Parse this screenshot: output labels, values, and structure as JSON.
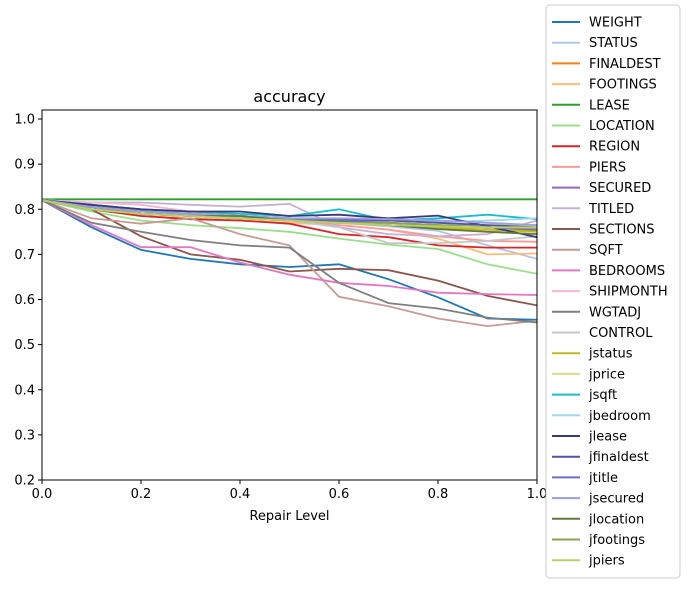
{
  "chart_data": {
    "type": "line",
    "title": "accuracy",
    "xlabel": "Repair Level",
    "ylabel": "",
    "xlim": [
      0.0,
      1.0
    ],
    "ylim": [
      0.2,
      1.02
    ],
    "xticks": [
      "0.0",
      "0.2",
      "0.4",
      "0.6",
      "0.8",
      "1.0"
    ],
    "yticks": [
      "0.2",
      "0.3",
      "0.4",
      "0.5",
      "0.6",
      "0.7",
      "0.8",
      "0.9",
      "1.0"
    ],
    "grid": false,
    "legend_position": "right",
    "x": [
      0.0,
      0.1,
      0.2,
      0.3,
      0.4,
      0.5,
      0.6,
      0.7,
      0.8,
      0.9,
      1.0
    ],
    "series": [
      {
        "name": "WEIGHT",
        "color": "#1f77b4",
        "values": [
          0.82,
          0.76,
          0.71,
          0.69,
          0.678,
          0.672,
          0.678,
          0.645,
          0.605,
          0.558,
          0.555
        ]
      },
      {
        "name": "STATUS",
        "color": "#aec7e8",
        "values": [
          0.82,
          0.8,
          0.79,
          0.785,
          0.78,
          0.775,
          0.77,
          0.762,
          0.752,
          0.72,
          0.69
        ]
      },
      {
        "name": "FINALDEST",
        "color": "#ff7f0e",
        "values": [
          0.82,
          0.805,
          0.79,
          0.785,
          0.78,
          0.775,
          0.77,
          0.765,
          0.758,
          0.755,
          0.752
        ]
      },
      {
        "name": "FOOTINGS",
        "color": "#ffbb78",
        "values": [
          0.82,
          0.8,
          0.785,
          0.78,
          0.775,
          0.77,
          0.765,
          0.755,
          0.735,
          0.7,
          0.702
        ]
      },
      {
        "name": "LEASE",
        "color": "#2ca02c",
        "values": [
          0.822,
          0.822,
          0.822,
          0.822,
          0.822,
          0.822,
          0.822,
          0.822,
          0.822,
          0.822,
          0.822
        ]
      },
      {
        "name": "LOCATION",
        "color": "#98df8a",
        "values": [
          0.82,
          0.795,
          0.775,
          0.765,
          0.758,
          0.75,
          0.735,
          0.722,
          0.712,
          0.678,
          0.657
        ]
      },
      {
        "name": "REGION",
        "color": "#d62728",
        "values": [
          0.82,
          0.8,
          0.785,
          0.778,
          0.775,
          0.768,
          0.745,
          0.738,
          0.72,
          0.715,
          0.715
        ]
      },
      {
        "name": "PIERS",
        "color": "#ff9896",
        "values": [
          0.82,
          0.81,
          0.795,
          0.79,
          0.785,
          0.775,
          0.765,
          0.755,
          0.74,
          0.73,
          0.728
        ]
      },
      {
        "name": "SECURED",
        "color": "#9467bd",
        "values": [
          0.82,
          0.805,
          0.795,
          0.79,
          0.785,
          0.78,
          0.775,
          0.77,
          0.765,
          0.76,
          0.755
        ]
      },
      {
        "name": "TITLED",
        "color": "#c5b0d5",
        "values": [
          0.82,
          0.815,
          0.815,
          0.81,
          0.806,
          0.812,
          0.76,
          0.745,
          0.74,
          0.745,
          0.775
        ]
      },
      {
        "name": "SECTIONS",
        "color": "#8c564b",
        "values": [
          0.82,
          0.8,
          0.74,
          0.7,
          0.688,
          0.662,
          0.668,
          0.665,
          0.642,
          0.608,
          0.587
        ]
      },
      {
        "name": "SQFT",
        "color": "#c49c94",
        "values": [
          0.82,
          0.78,
          0.768,
          0.78,
          0.745,
          0.72,
          0.606,
          0.585,
          0.558,
          0.541,
          0.553
        ]
      },
      {
        "name": "BEDROOMS",
        "color": "#e377c2",
        "values": [
          0.82,
          0.765,
          0.716,
          0.716,
          0.682,
          0.655,
          0.637,
          0.63,
          0.615,
          0.612,
          0.61
        ]
      },
      {
        "name": "SHIPMONTH",
        "color": "#f7b6d2",
        "values": [
          0.82,
          0.815,
          0.81,
          0.795,
          0.785,
          0.78,
          0.775,
          0.77,
          0.765,
          0.76,
          0.76
        ]
      },
      {
        "name": "WGTADJ",
        "color": "#7f7f7f",
        "values": [
          0.82,
          0.77,
          0.75,
          0.732,
          0.72,
          0.715,
          0.637,
          0.592,
          0.58,
          0.56,
          0.549
        ]
      },
      {
        "name": "CONTROL",
        "color": "#c7c7c7",
        "values": [
          0.82,
          0.81,
          0.8,
          0.79,
          0.785,
          0.775,
          0.76,
          0.725,
          0.725,
          0.73,
          0.74
        ]
      },
      {
        "name": "jstatus",
        "color": "#bcbd22",
        "values": [
          0.82,
          0.8,
          0.79,
          0.785,
          0.78,
          0.775,
          0.77,
          0.765,
          0.76,
          0.755,
          0.75
        ]
      },
      {
        "name": "jprice",
        "color": "#dbdb8d",
        "values": [
          0.82,
          0.805,
          0.795,
          0.79,
          0.785,
          0.78,
          0.775,
          0.77,
          0.765,
          0.765,
          0.765
        ]
      },
      {
        "name": "jsqft",
        "color": "#17becf",
        "values": [
          0.82,
          0.81,
          0.8,
          0.795,
          0.79,
          0.785,
          0.8,
          0.775,
          0.78,
          0.788,
          0.778
        ]
      },
      {
        "name": "jbedroom",
        "color": "#9edae5",
        "values": [
          0.82,
          0.805,
          0.795,
          0.79,
          0.785,
          0.78,
          0.778,
          0.775,
          0.772,
          0.775,
          0.78
        ]
      },
      {
        "name": "jlease",
        "color": "#393b79",
        "values": [
          0.82,
          0.81,
          0.8,
          0.795,
          0.795,
          0.785,
          0.788,
          0.78,
          0.786,
          0.762,
          0.738
        ]
      },
      {
        "name": "jfinaldest",
        "color": "#5254a3",
        "values": [
          0.82,
          0.805,
          0.795,
          0.79,
          0.785,
          0.78,
          0.778,
          0.775,
          0.77,
          0.765,
          0.76
        ]
      },
      {
        "name": "jtitle",
        "color": "#6b6ecf",
        "values": [
          0.82,
          0.805,
          0.795,
          0.79,
          0.785,
          0.775,
          0.775,
          0.77,
          0.765,
          0.76,
          0.755
        ]
      },
      {
        "name": "jsecured",
        "color": "#9c9ede",
        "values": [
          0.82,
          0.805,
          0.795,
          0.79,
          0.785,
          0.78,
          0.78,
          0.778,
          0.775,
          0.77,
          0.765
        ]
      },
      {
        "name": "jlocation",
        "color": "#637939",
        "values": [
          0.82,
          0.8,
          0.79,
          0.785,
          0.785,
          0.775,
          0.772,
          0.765,
          0.756,
          0.75,
          0.745
        ]
      },
      {
        "name": "jfootings",
        "color": "#8ca252",
        "values": [
          0.82,
          0.8,
          0.79,
          0.785,
          0.78,
          0.775,
          0.77,
          0.77,
          0.765,
          0.76,
          0.758
        ]
      },
      {
        "name": "jpiers",
        "color": "#b5cf6b",
        "values": [
          0.82,
          0.8,
          0.79,
          0.785,
          0.78,
          0.775,
          0.77,
          0.765,
          0.762,
          0.76,
          0.76
        ]
      }
    ]
  }
}
